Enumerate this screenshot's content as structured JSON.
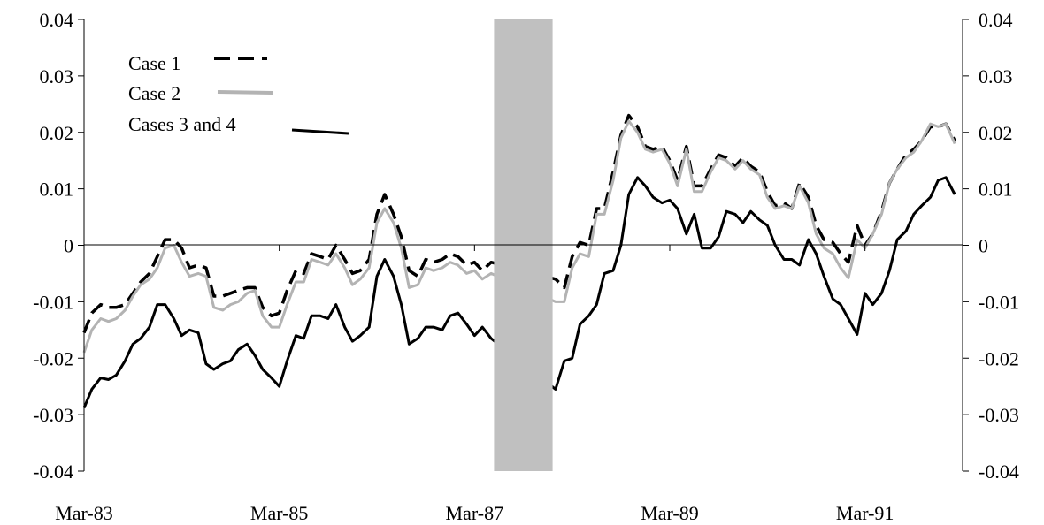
{
  "chart_data": {
    "type": "line",
    "title": "",
    "xlabel": "",
    "ylabel": "",
    "xlim": [
      1983.0,
      1992.0
    ],
    "ylim": [
      -0.04,
      0.04
    ],
    "yticks": [
      -0.04,
      -0.03,
      -0.02,
      -0.01,
      0,
      0.01,
      0.02,
      0.03,
      0.04
    ],
    "ytick_labels": [
      "-0.04",
      "-0.03",
      "-0.02",
      "-0.01",
      "0",
      "0.01",
      "0.02",
      "0.03",
      "0.04"
    ],
    "xticks": [
      1983.0,
      1985.0,
      1987.0,
      1989.0,
      1991.0
    ],
    "xtick_labels": [
      "Mar-83",
      "Mar-85",
      "Mar-87",
      "Mar-89",
      "Mar-91"
    ],
    "legend_position": "top-left",
    "grid": false,
    "shaded_region": {
      "x_start": 1987.2,
      "x_end": 1987.8,
      "color": "#c0c0c0"
    },
    "series": [
      {
        "name": "Case 1",
        "color": "#000000",
        "style": "dashed",
        "x": [
          1983.0,
          1983.08,
          1983.17,
          1983.25,
          1983.33,
          1983.42,
          1983.5,
          1983.58,
          1983.67,
          1983.75,
          1983.83,
          1983.92,
          1984.0,
          1984.08,
          1984.17,
          1984.25,
          1984.33,
          1984.42,
          1984.5,
          1984.58,
          1984.67,
          1984.75,
          1984.83,
          1984.92,
          1985.0,
          1985.08,
          1985.17,
          1985.25,
          1985.33,
          1985.42,
          1985.5,
          1985.58,
          1985.67,
          1985.75,
          1985.83,
          1985.92,
          1986.0,
          1986.08,
          1986.17,
          1986.25,
          1986.33,
          1986.42,
          1986.5,
          1986.58,
          1986.67,
          1986.75,
          1986.83,
          1986.92,
          1987.0,
          1987.08,
          1987.17,
          1987.83,
          1987.92,
          1988.0,
          1988.08,
          1988.17,
          1988.25,
          1988.33,
          1988.42,
          1988.5,
          1988.58,
          1988.67,
          1988.75,
          1988.83,
          1988.92,
          1989.0,
          1989.08,
          1989.17,
          1989.25,
          1989.33,
          1989.42,
          1989.5,
          1989.58,
          1989.67,
          1989.75,
          1989.83,
          1989.92,
          1990.0,
          1990.08,
          1990.17,
          1990.25,
          1990.33,
          1990.42,
          1990.5,
          1990.58,
          1990.67,
          1990.75,
          1990.83,
          1990.92,
          1991.0,
          1991.08,
          1991.17,
          1991.25,
          1991.33,
          1991.42,
          1991.5,
          1991.58,
          1991.67,
          1991.75,
          1991.83,
          1991.92
        ],
        "values": [
          -0.0155,
          -0.012,
          -0.0105,
          -0.011,
          -0.011,
          -0.0105,
          -0.0085,
          -0.0065,
          -0.005,
          -0.002,
          0.001,
          0.001,
          -0.0005,
          -0.004,
          -0.0035,
          -0.004,
          -0.009,
          -0.009,
          -0.0085,
          -0.008,
          -0.0075,
          -0.0075,
          -0.011,
          -0.0125,
          -0.012,
          -0.008,
          -0.0045,
          -0.005,
          -0.0015,
          -0.002,
          -0.0025,
          0.0,
          -0.0025,
          -0.005,
          -0.0045,
          -0.0025,
          0.0055,
          0.009,
          0.0055,
          0.0015,
          -0.0045,
          -0.0055,
          -0.0025,
          -0.003,
          -0.0025,
          -0.0015,
          -0.002,
          -0.0035,
          -0.003,
          -0.0045,
          -0.003,
          -0.006,
          -0.0075,
          -0.002,
          0.0005,
          0.0,
          0.0065,
          0.0065,
          0.013,
          0.0195,
          0.023,
          0.021,
          0.0175,
          0.017,
          0.0175,
          0.015,
          0.0115,
          0.0175,
          0.0105,
          0.0105,
          0.0135,
          0.016,
          0.0155,
          0.014,
          0.0155,
          0.014,
          0.013,
          0.0095,
          0.007,
          0.0075,
          0.0065,
          0.011,
          0.0085,
          0.0035,
          0.001,
          0.0005,
          -0.0015,
          -0.003,
          0.0035,
          0.0,
          0.002,
          0.006,
          0.011,
          0.0135,
          0.016,
          0.017,
          0.0185,
          0.021,
          0.021,
          0.0215,
          0.0185
        ]
      },
      {
        "name": "Case 2",
        "color": "#b3b3b3",
        "style": "solid",
        "x": [
          1983.0,
          1983.08,
          1983.17,
          1983.25,
          1983.33,
          1983.42,
          1983.5,
          1983.58,
          1983.67,
          1983.75,
          1983.83,
          1983.92,
          1984.0,
          1984.08,
          1984.17,
          1984.25,
          1984.33,
          1984.42,
          1984.5,
          1984.58,
          1984.67,
          1984.75,
          1984.83,
          1984.92,
          1985.0,
          1985.08,
          1985.17,
          1985.25,
          1985.33,
          1985.42,
          1985.5,
          1985.58,
          1985.67,
          1985.75,
          1985.83,
          1985.92,
          1986.0,
          1986.08,
          1986.17,
          1986.25,
          1986.33,
          1986.42,
          1986.5,
          1986.58,
          1986.67,
          1986.75,
          1986.83,
          1986.92,
          1987.0,
          1987.08,
          1987.17,
          1987.83,
          1987.92,
          1988.0,
          1988.08,
          1988.17,
          1988.25,
          1988.33,
          1988.42,
          1988.5,
          1988.58,
          1988.67,
          1988.75,
          1988.83,
          1988.92,
          1989.0,
          1989.08,
          1989.17,
          1989.25,
          1989.33,
          1989.42,
          1989.5,
          1989.58,
          1989.67,
          1989.75,
          1989.83,
          1989.92,
          1990.0,
          1990.08,
          1990.17,
          1990.25,
          1990.33,
          1990.42,
          1990.5,
          1990.58,
          1990.67,
          1990.75,
          1990.83,
          1990.92,
          1991.0,
          1991.08,
          1991.17,
          1991.25,
          1991.33,
          1991.42,
          1991.5,
          1991.58,
          1991.67,
          1991.75,
          1991.83,
          1991.92
        ],
        "values": [
          -0.019,
          -0.015,
          -0.013,
          -0.0135,
          -0.013,
          -0.0115,
          -0.009,
          -0.007,
          -0.006,
          -0.004,
          -0.0005,
          0.0,
          -0.003,
          -0.0055,
          -0.005,
          -0.0055,
          -0.011,
          -0.0115,
          -0.0105,
          -0.01,
          -0.0085,
          -0.008,
          -0.0125,
          -0.0145,
          -0.0145,
          -0.0105,
          -0.0065,
          -0.0065,
          -0.0025,
          -0.003,
          -0.0035,
          -0.0015,
          -0.004,
          -0.007,
          -0.006,
          -0.004,
          0.004,
          0.0065,
          0.004,
          -0.0005,
          -0.0075,
          -0.007,
          -0.004,
          -0.0045,
          -0.004,
          -0.003,
          -0.0035,
          -0.005,
          -0.0045,
          -0.006,
          -0.005,
          -0.01,
          -0.01,
          -0.004,
          -0.0015,
          -0.002,
          0.0055,
          0.0055,
          0.0115,
          0.019,
          0.022,
          0.02,
          0.017,
          0.0165,
          0.017,
          0.0145,
          0.0105,
          0.017,
          0.0095,
          0.0095,
          0.013,
          0.0155,
          0.015,
          0.0135,
          0.015,
          0.0135,
          0.0125,
          0.0085,
          0.0065,
          0.007,
          0.0065,
          0.0105,
          0.0075,
          0.002,
          -0.0005,
          -0.0015,
          -0.004,
          -0.0058,
          0.001,
          -0.0005,
          0.002,
          0.0055,
          0.011,
          0.0135,
          0.0155,
          0.0165,
          0.0185,
          0.0215,
          0.021,
          0.0215,
          0.018
        ]
      },
      {
        "name": "Cases 3 and 4",
        "color": "#000000",
        "style": "solid",
        "x": [
          1983.0,
          1983.08,
          1983.17,
          1983.25,
          1983.33,
          1983.42,
          1983.5,
          1983.58,
          1983.67,
          1983.75,
          1983.83,
          1983.92,
          1984.0,
          1984.08,
          1984.17,
          1984.25,
          1984.33,
          1984.42,
          1984.5,
          1984.58,
          1984.67,
          1984.75,
          1984.83,
          1984.92,
          1985.0,
          1985.08,
          1985.17,
          1985.25,
          1985.33,
          1985.42,
          1985.5,
          1985.58,
          1985.67,
          1985.75,
          1985.83,
          1985.92,
          1986.0,
          1986.08,
          1986.17,
          1986.25,
          1986.33,
          1986.42,
          1986.5,
          1986.58,
          1986.67,
          1986.75,
          1986.83,
          1986.92,
          1987.0,
          1987.08,
          1987.17,
          1987.83,
          1987.92,
          1988.0,
          1988.08,
          1988.17,
          1988.25,
          1988.33,
          1988.42,
          1988.5,
          1988.58,
          1988.67,
          1988.75,
          1988.83,
          1988.92,
          1989.0,
          1989.08,
          1989.17,
          1989.25,
          1989.33,
          1989.42,
          1989.5,
          1989.58,
          1989.67,
          1989.75,
          1989.83,
          1989.92,
          1990.0,
          1990.08,
          1990.17,
          1990.25,
          1990.33,
          1990.42,
          1990.5,
          1990.58,
          1990.67,
          1990.75,
          1990.83,
          1990.92,
          1991.0,
          1991.08,
          1991.17,
          1991.25,
          1991.33,
          1991.42,
          1991.5,
          1991.58,
          1991.67,
          1991.75,
          1991.83,
          1991.92
        ],
        "values": [
          -0.0288,
          -0.0255,
          -0.0235,
          -0.0238,
          -0.023,
          -0.0205,
          -0.0175,
          -0.0165,
          -0.0145,
          -0.0105,
          -0.0105,
          -0.013,
          -0.016,
          -0.015,
          -0.0155,
          -0.021,
          -0.022,
          -0.021,
          -0.0205,
          -0.0185,
          -0.0175,
          -0.0195,
          -0.022,
          -0.0235,
          -0.025,
          -0.0205,
          -0.016,
          -0.0165,
          -0.0125,
          -0.0125,
          -0.013,
          -0.0105,
          -0.0145,
          -0.017,
          -0.016,
          -0.0145,
          -0.0055,
          -0.0025,
          -0.0055,
          -0.0105,
          -0.0175,
          -0.0165,
          -0.0145,
          -0.0145,
          -0.015,
          -0.0125,
          -0.012,
          -0.014,
          -0.016,
          -0.0145,
          -0.0165,
          -0.0255,
          -0.0205,
          -0.02,
          -0.014,
          -0.0125,
          -0.0105,
          -0.005,
          -0.0045,
          0.0,
          0.009,
          0.012,
          0.0105,
          0.0085,
          0.0075,
          0.008,
          0.0065,
          0.002,
          0.0055,
          -0.0005,
          -0.0005,
          0.0015,
          0.006,
          0.0055,
          0.004,
          0.006,
          0.0045,
          0.0035,
          0.0,
          -0.0025,
          -0.0025,
          -0.0035,
          0.001,
          -0.0015,
          -0.0055,
          -0.0095,
          -0.0105,
          -0.013,
          -0.0158,
          -0.0085,
          -0.0105,
          -0.0085,
          -0.0045,
          0.001,
          0.0025,
          0.0055,
          0.007,
          0.0085,
          0.0115,
          0.012,
          0.009
        ]
      }
    ]
  }
}
